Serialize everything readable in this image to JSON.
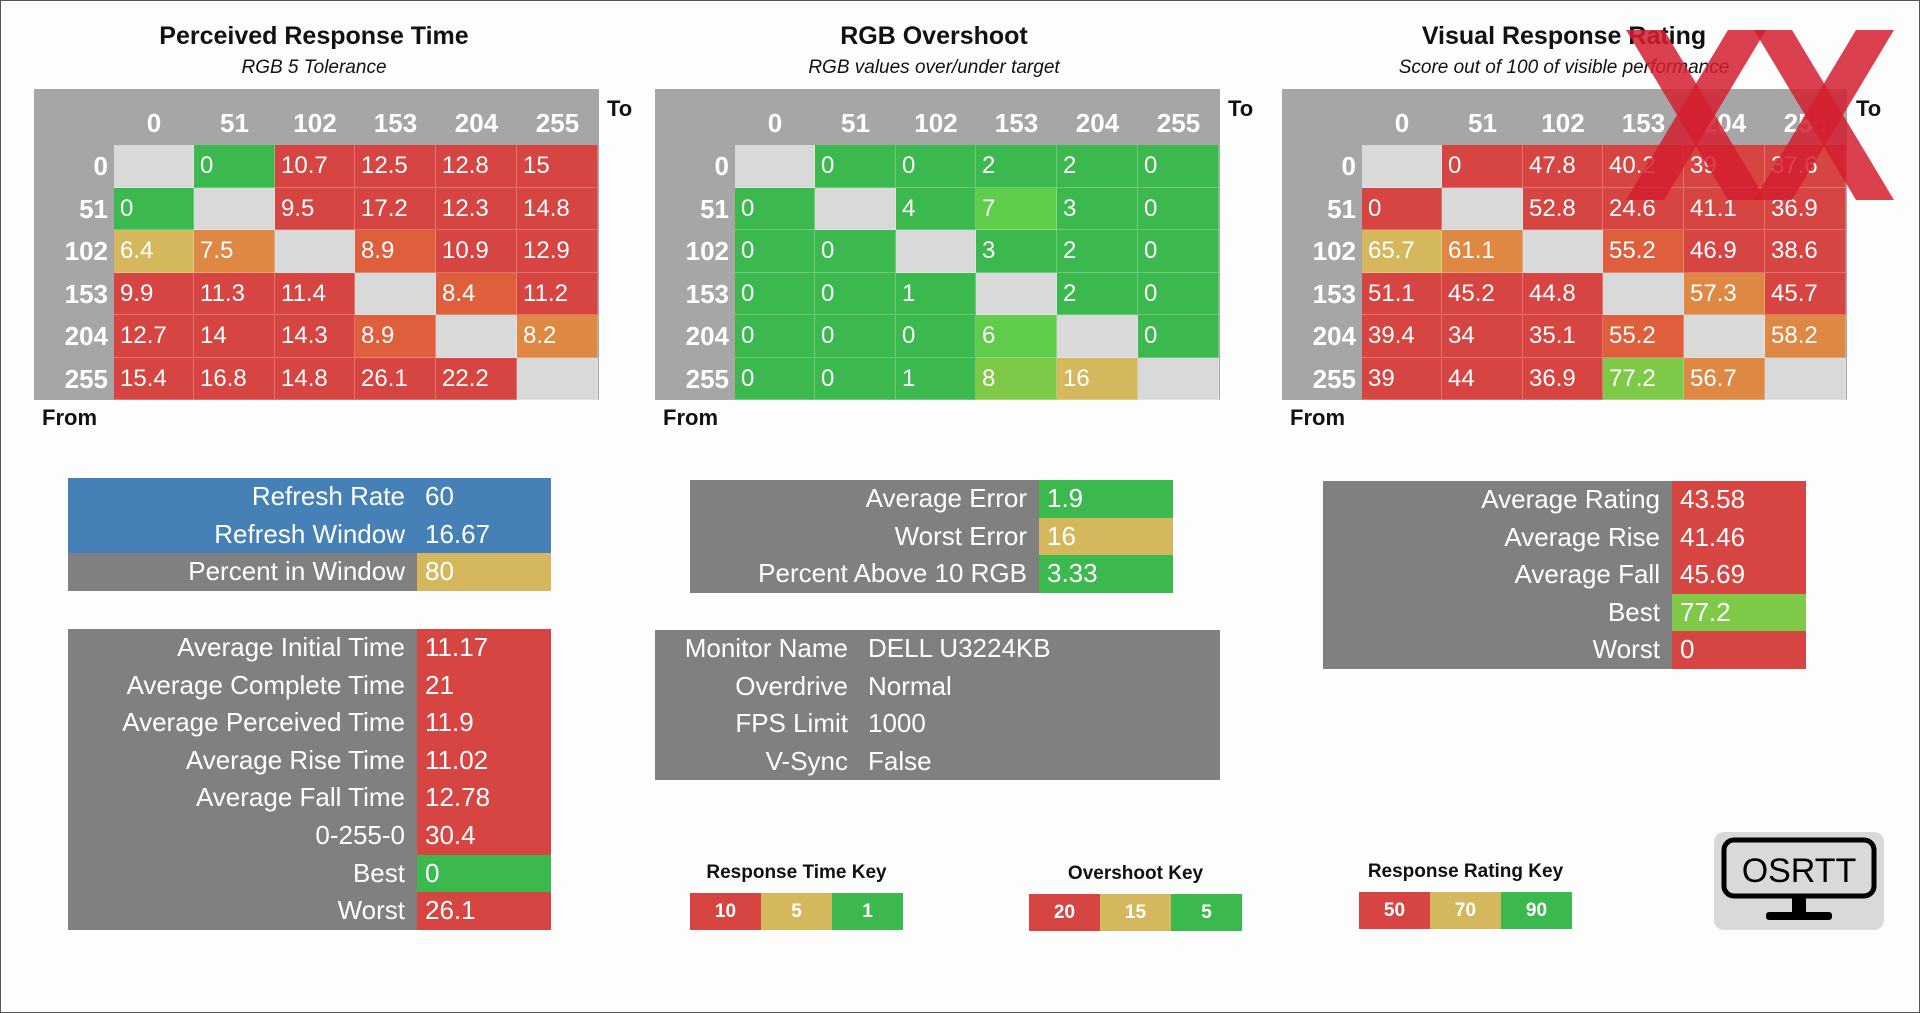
{
  "colors": {
    "red": "#d64541",
    "redorange": "#df5f3c",
    "orange": "#de8844",
    "yellow": "#d5b85d",
    "lime": "#7fc948",
    "lightgreen": "#5fcc4c",
    "green": "#3cb94e",
    "blue": "#4581b6",
    "gray": "#808080",
    "matrix_bg": "#a6a6a6",
    "diag": "#d9d9d9"
  },
  "chart_data": [
    {
      "type": "heatmap",
      "title": "Perceived Response Time",
      "subtitle": "RGB 5 Tolerance",
      "to_label": "To",
      "from_label": "From",
      "levels": [
        0,
        51,
        102,
        153,
        204,
        255
      ],
      "values": [
        [
          null,
          "0",
          "10.7",
          "12.5",
          "12.8",
          "15"
        ],
        [
          "0",
          null,
          "9.5",
          "17.2",
          "12.3",
          "14.8"
        ],
        [
          "6.4",
          "7.5",
          null,
          "8.9",
          "10.9",
          "12.9"
        ],
        [
          "9.9",
          "11.3",
          "11.4",
          null,
          "8.4",
          "11.2"
        ],
        [
          "12.7",
          "14",
          "14.3",
          "8.9",
          null,
          "8.2"
        ],
        [
          "15.4",
          "16.8",
          "14.8",
          "26.1",
          "22.2",
          null
        ]
      ],
      "cell_colors": [
        [
          null,
          "green",
          "red",
          "red",
          "red",
          "red"
        ],
        [
          "green",
          null,
          "red",
          "red",
          "red",
          "red"
        ],
        [
          "yellow",
          "orange",
          null,
          "redorange",
          "red",
          "red"
        ],
        [
          "red",
          "red",
          "red",
          null,
          "redorange",
          "red"
        ],
        [
          "red",
          "red",
          "red",
          "redorange",
          null,
          "orange"
        ],
        [
          "red",
          "red",
          "red",
          "red",
          "red",
          null
        ]
      ]
    },
    {
      "type": "heatmap",
      "title": "RGB Overshoot",
      "subtitle": "RGB values over/under target",
      "to_label": "To",
      "from_label": "From",
      "levels": [
        0,
        51,
        102,
        153,
        204,
        255
      ],
      "values": [
        [
          null,
          "0",
          "0",
          "2",
          "2",
          "0"
        ],
        [
          "0",
          null,
          "4",
          "7",
          "3",
          "0"
        ],
        [
          "0",
          "0",
          null,
          "3",
          "2",
          "0"
        ],
        [
          "0",
          "0",
          "1",
          null,
          "2",
          "0"
        ],
        [
          "0",
          "0",
          "0",
          "6",
          null,
          "0"
        ],
        [
          "0",
          "0",
          "1",
          "8",
          "16",
          null
        ]
      ],
      "cell_colors": [
        [
          null,
          "green",
          "green",
          "green",
          "green",
          "green"
        ],
        [
          "green",
          null,
          "green",
          "lightgreen",
          "green",
          "green"
        ],
        [
          "green",
          "green",
          null,
          "green",
          "green",
          "green"
        ],
        [
          "green",
          "green",
          "green",
          null,
          "green",
          "green"
        ],
        [
          "green",
          "green",
          "green",
          "lightgreen",
          null,
          "green"
        ],
        [
          "green",
          "green",
          "green",
          "lime",
          "yellow",
          null
        ]
      ]
    },
    {
      "type": "heatmap",
      "title": "Visual Response Rating",
      "subtitle": "Score out of 100 of visible performance",
      "to_label": "To",
      "from_label": "From",
      "levels": [
        0,
        51,
        102,
        153,
        204,
        255
      ],
      "values": [
        [
          null,
          "0",
          "47.8",
          "40.2",
          "39",
          "37.6"
        ],
        [
          "0",
          null,
          "52.8",
          "24.6",
          "41.1",
          "36.9"
        ],
        [
          "65.7",
          "61.1",
          null,
          "55.2",
          "46.9",
          "38.6"
        ],
        [
          "51.1",
          "45.2",
          "44.8",
          null,
          "57.3",
          "45.7"
        ],
        [
          "39.4",
          "34",
          "35.1",
          "55.2",
          null,
          "58.2"
        ],
        [
          "39",
          "44",
          "36.9",
          "77.2",
          "56.7",
          null
        ]
      ],
      "cell_colors": [
        [
          null,
          "red",
          "red",
          "red",
          "red",
          "red"
        ],
        [
          "red",
          null,
          "red",
          "red",
          "red",
          "red"
        ],
        [
          "yellow",
          "orange",
          null,
          "redorange",
          "red",
          "red"
        ],
        [
          "red",
          "red",
          "red",
          null,
          "orange",
          "red"
        ],
        [
          "red",
          "red",
          "red",
          "redorange",
          null,
          "orange"
        ],
        [
          "red",
          "red",
          "red",
          "lime",
          "orange",
          null
        ]
      ]
    }
  ],
  "refresh": {
    "rows": [
      {
        "label": "Refresh Rate",
        "value": "60",
        "label_color": "blue",
        "value_color": "blue"
      },
      {
        "label": "Refresh Window",
        "value": "16.67",
        "label_color": "blue",
        "value_color": "blue"
      },
      {
        "label": "Percent in Window",
        "value": "80",
        "label_color": "gray",
        "value_color": "yellow"
      }
    ]
  },
  "response_stats": {
    "rows": [
      {
        "label": "Average Initial Time",
        "value": "11.17",
        "value_color": "red"
      },
      {
        "label": "Average Complete Time",
        "value": "21",
        "value_color": "red"
      },
      {
        "label": "Average Perceived Time",
        "value": "11.9",
        "value_color": "red"
      },
      {
        "label": "Average Rise Time",
        "value": "11.02",
        "value_color": "red"
      },
      {
        "label": "Average Fall Time",
        "value": "12.78",
        "value_color": "red"
      },
      {
        "label": "0-255-0",
        "value": "30.4",
        "value_color": "red"
      },
      {
        "label": "Best",
        "value": "0",
        "value_color": "green"
      },
      {
        "label": "Worst",
        "value": "26.1",
        "value_color": "red"
      }
    ]
  },
  "overshoot_stats": {
    "rows": [
      {
        "label": "Average Error",
        "value": "1.9",
        "value_color": "green"
      },
      {
        "label": "Worst Error",
        "value": "16",
        "value_color": "yellow"
      },
      {
        "label": "Percent Above 10 RGB",
        "value": "3.33",
        "value_color": "green"
      }
    ]
  },
  "monitor": {
    "rows": [
      {
        "label": "Monitor Name",
        "value": "DELL U3224KB"
      },
      {
        "label": "Overdrive",
        "value": "Normal"
      },
      {
        "label": "FPS Limit",
        "value": "1000"
      },
      {
        "label": "V-Sync",
        "value": "False"
      }
    ]
  },
  "rating_stats": {
    "rows": [
      {
        "label": "Average Rating",
        "value": "43.58",
        "value_color": "red"
      },
      {
        "label": "Average Rise",
        "value": "41.46",
        "value_color": "red"
      },
      {
        "label": "Average Fall",
        "value": "45.69",
        "value_color": "red"
      },
      {
        "label": "Best",
        "value": "77.2",
        "value_color": "lime"
      },
      {
        "label": "Worst",
        "value": "0",
        "value_color": "red"
      }
    ]
  },
  "keys": [
    {
      "title": "Response Time Key",
      "items": [
        {
          "text": "10",
          "color": "red"
        },
        {
          "text": "5",
          "color": "yellow"
        },
        {
          "text": "1",
          "color": "green"
        }
      ]
    },
    {
      "title": "Overshoot Key",
      "items": [
        {
          "text": "20",
          "color": "red"
        },
        {
          "text": "15",
          "color": "yellow"
        },
        {
          "text": "5",
          "color": "green"
        }
      ]
    },
    {
      "title": "Response Rating Key",
      "items": [
        {
          "text": "50",
          "color": "red"
        },
        {
          "text": "70",
          "color": "yellow"
        },
        {
          "text": "90",
          "color": "green"
        }
      ]
    }
  ],
  "logo": {
    "text": "OSRTT",
    "icon": "monitor-icon"
  },
  "watermark": {
    "icon": "double-x-watermark"
  }
}
